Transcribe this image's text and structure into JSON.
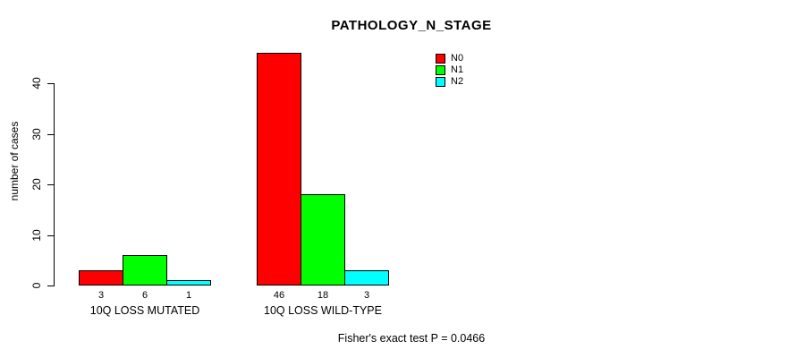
{
  "chart_data": {
    "type": "bar",
    "title": "PATHOLOGY_N_STAGE",
    "ylabel": "number of cases",
    "xlabel": "",
    "annotation": "Fisher's exact test P = 0.0466",
    "categories": [
      "10Q LOSS MUTATED",
      "10Q LOSS WILD-TYPE"
    ],
    "series": [
      {
        "name": "N0",
        "color": "#ff0000",
        "values": [
          3,
          46
        ]
      },
      {
        "name": "N1",
        "color": "#00ff00",
        "values": [
          6,
          18
        ]
      },
      {
        "name": "N2",
        "color": "#00ffff",
        "values": [
          1,
          3
        ]
      }
    ],
    "show_bar_value_labels": true,
    "yticks": [
      0,
      10,
      20,
      30,
      40
    ],
    "ylim": [
      0,
      46.5
    ],
    "grid": false,
    "legend_position": "top-right",
    "bar_border_color": "#000000",
    "axis_color": "#000000",
    "background_color": "#ffffff",
    "text_color": "#000000"
  }
}
